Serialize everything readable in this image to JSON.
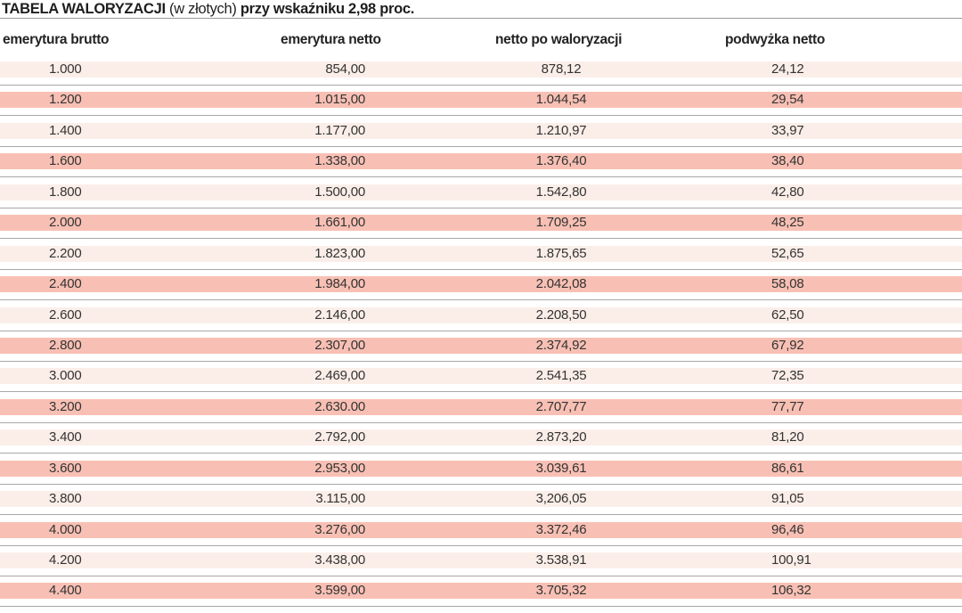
{
  "title": {
    "main": "TABELA WALORYZACJI",
    "unit": "(w złotych)",
    "rest": "przy wskaźniku 2,98 proc."
  },
  "headers": [
    "emerytura brutto",
    "emerytura netto",
    "netto po waloryzacji",
    "podwyżka netto"
  ],
  "colors": {
    "band_light": "#fbeee8",
    "band_dark": "#f8c0b4"
  },
  "rows": [
    [
      "1.000",
      "854,00",
      "878,12",
      "24,12"
    ],
    [
      "1.200",
      "1.015,00",
      "1.044,54",
      "29,54"
    ],
    [
      "1.400",
      "1.177,00",
      "1.210,97",
      "33,97"
    ],
    [
      "1.600",
      "1.338,00",
      "1.376,40",
      "38,40"
    ],
    [
      "1.800",
      "1.500,00",
      "1.542,80",
      "42,80"
    ],
    [
      "2.000",
      "1.661,00",
      "1.709,25",
      "48,25"
    ],
    [
      "2.200",
      "1.823,00",
      "1.875,65",
      "52,65"
    ],
    [
      "2.400",
      "1.984,00",
      "2.042,08",
      "58,08"
    ],
    [
      "2.600",
      "2.146,00",
      "2.208,50",
      "62,50"
    ],
    [
      "2.800",
      "2.307,00",
      "2.374,92",
      "67,92"
    ],
    [
      "3.000",
      "2.469,00",
      "2.541,35",
      "72,35"
    ],
    [
      "3.200",
      "2.630.00",
      "2.707,77",
      "77,77"
    ],
    [
      "3.400",
      "2.792,00",
      "2.873,20",
      "81,20"
    ],
    [
      "3.600",
      "2.953,00",
      "3.039,61",
      "86,61"
    ],
    [
      "3.800",
      "3.115,00",
      "3,206,05",
      "91,05"
    ],
    [
      "4.000",
      "3.276,00",
      "3.372,46",
      "96,46"
    ],
    [
      "4.200",
      "3.438,00",
      "3.538,91",
      "100,91"
    ],
    [
      "4.400",
      "3.599,00",
      "3.705,32",
      "106,32"
    ]
  ]
}
